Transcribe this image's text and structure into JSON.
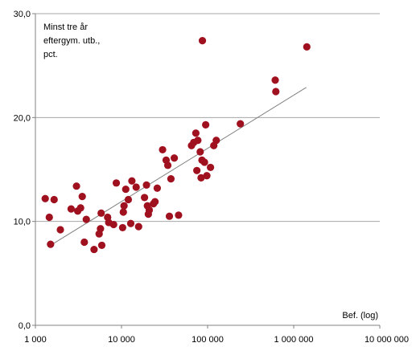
{
  "chart_data": {
    "type": "scatter",
    "title": "",
    "xlabel": "Bef.  (log)",
    "ylabel": "Minst tre år eftergym. utb., pct.",
    "ylabel_lines": [
      "Minst tre år",
      "eftergym. utb.,",
      "pct."
    ],
    "x_scale": "log",
    "xlim": [
      1000,
      10000000
    ],
    "ylim": [
      0,
      30
    ],
    "x_ticks": [
      1000,
      10000,
      100000,
      1000000,
      10000000
    ],
    "x_tick_labels": [
      "1 000",
      "10 000",
      "100 000",
      "1 000 000",
      "10 000 000"
    ],
    "y_ticks": [
      0,
      10,
      20,
      30
    ],
    "y_tick_labels": [
      "0,0",
      "10,0",
      "20,0",
      "30,0"
    ],
    "grid": "horizontal",
    "point_color": "#a0111f",
    "trend_color": "#808080",
    "trendline": {
      "x": [
        1500,
        1400000
      ],
      "y": [
        7.7,
        22.9
      ]
    },
    "points": [
      {
        "x": 1300,
        "y": 12.2
      },
      {
        "x": 1450,
        "y": 10.4
      },
      {
        "x": 1500,
        "y": 7.8
      },
      {
        "x": 1650,
        "y": 12.1
      },
      {
        "x": 1950,
        "y": 9.2
      },
      {
        "x": 2600,
        "y": 11.2
      },
      {
        "x": 3000,
        "y": 13.4
      },
      {
        "x": 3100,
        "y": 11.0
      },
      {
        "x": 3350,
        "y": 11.3
      },
      {
        "x": 3500,
        "y": 12.4
      },
      {
        "x": 3700,
        "y": 8.0
      },
      {
        "x": 3900,
        "y": 10.2
      },
      {
        "x": 4800,
        "y": 7.3
      },
      {
        "x": 5500,
        "y": 8.8
      },
      {
        "x": 5700,
        "y": 9.3
      },
      {
        "x": 5900,
        "y": 7.7
      },
      {
        "x": 5800,
        "y": 10.8
      },
      {
        "x": 6900,
        "y": 10.4
      },
      {
        "x": 7100,
        "y": 9.9
      },
      {
        "x": 8100,
        "y": 9.7
      },
      {
        "x": 8700,
        "y": 13.7
      },
      {
        "x": 10500,
        "y": 10.9
      },
      {
        "x": 10700,
        "y": 11.5
      },
      {
        "x": 10300,
        "y": 9.4
      },
      {
        "x": 11200,
        "y": 13.1
      },
      {
        "x": 12000,
        "y": 12.1
      },
      {
        "x": 12800,
        "y": 9.8
      },
      {
        "x": 13200,
        "y": 13.9
      },
      {
        "x": 14800,
        "y": 13.3
      },
      {
        "x": 15800,
        "y": 9.5
      },
      {
        "x": 18500,
        "y": 12.3
      },
      {
        "x": 19500,
        "y": 13.5
      },
      {
        "x": 20000,
        "y": 11.5
      },
      {
        "x": 20500,
        "y": 10.7
      },
      {
        "x": 21000,
        "y": 11.1
      },
      {
        "x": 23500,
        "y": 11.7
      },
      {
        "x": 24500,
        "y": 11.9
      },
      {
        "x": 26000,
        "y": 13.2
      },
      {
        "x": 30000,
        "y": 16.9
      },
      {
        "x": 33000,
        "y": 15.9
      },
      {
        "x": 34500,
        "y": 15.4
      },
      {
        "x": 36000,
        "y": 10.5
      },
      {
        "x": 37500,
        "y": 14.1
      },
      {
        "x": 41000,
        "y": 16.1
      },
      {
        "x": 46000,
        "y": 10.6
      },
      {
        "x": 65000,
        "y": 17.3
      },
      {
        "x": 69000,
        "y": 17.6
      },
      {
        "x": 73000,
        "y": 18.5
      },
      {
        "x": 75000,
        "y": 14.9
      },
      {
        "x": 77000,
        "y": 17.8
      },
      {
        "x": 82000,
        "y": 16.7
      },
      {
        "x": 84000,
        "y": 14.2
      },
      {
        "x": 86000,
        "y": 15.9
      },
      {
        "x": 87000,
        "y": 27.4
      },
      {
        "x": 92000,
        "y": 15.7
      },
      {
        "x": 95000,
        "y": 19.3
      },
      {
        "x": 98000,
        "y": 14.4
      },
      {
        "x": 108000,
        "y": 15.2
      },
      {
        "x": 118000,
        "y": 17.3
      },
      {
        "x": 126000,
        "y": 17.8
      },
      {
        "x": 240000,
        "y": 19.4
      },
      {
        "x": 610000,
        "y": 23.6
      },
      {
        "x": 620000,
        "y": 22.5
      },
      {
        "x": 1420000,
        "y": 26.8
      }
    ]
  }
}
